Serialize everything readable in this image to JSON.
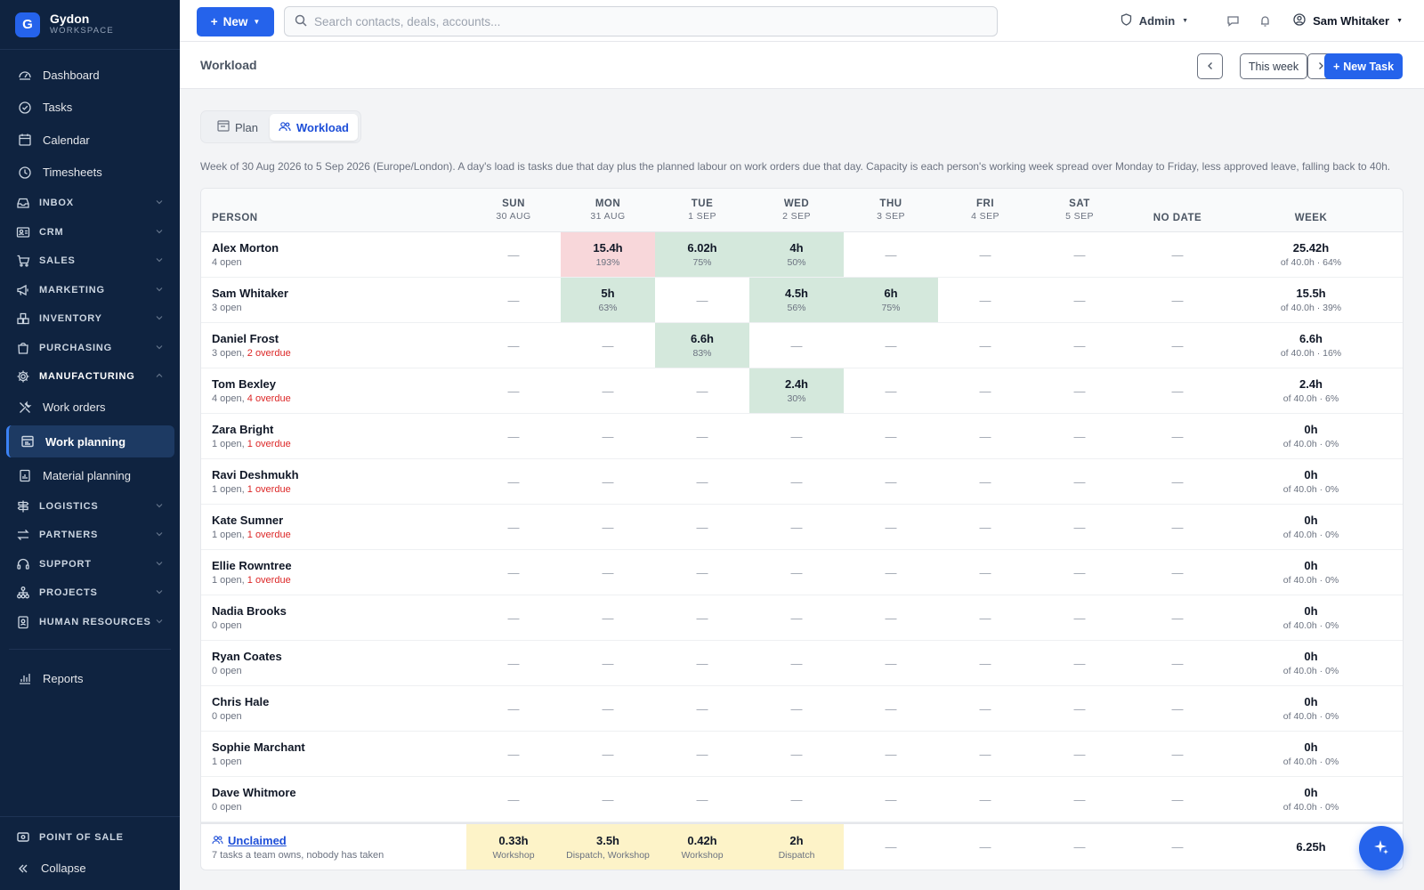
{
  "brand": {
    "name": "Gydon",
    "sub": "WORKSPACE",
    "logo": "G"
  },
  "sidebar": {
    "top_items": [
      {
        "label": "Dashboard",
        "icon": "dashboard-icon"
      },
      {
        "label": "Tasks",
        "icon": "check-circle-icon"
      },
      {
        "label": "Calendar",
        "icon": "calendar-icon"
      },
      {
        "label": "Timesheets",
        "icon": "clock-icon"
      }
    ],
    "sections": [
      {
        "label": "INBOX",
        "icon": "inbox-icon"
      },
      {
        "label": "CRM",
        "icon": "contact-card-icon"
      },
      {
        "label": "SALES",
        "icon": "cart-icon"
      },
      {
        "label": "MARKETING",
        "icon": "megaphone-icon"
      },
      {
        "label": "INVENTORY",
        "icon": "boxes-icon"
      },
      {
        "label": "PURCHASING",
        "icon": "bag-icon"
      },
      {
        "label": "MANUFACTURING",
        "icon": "gear-icon"
      }
    ],
    "manufacturing_items": [
      {
        "label": "Work orders",
        "icon": "tools-icon"
      },
      {
        "label": "Work planning",
        "icon": "planning-icon"
      },
      {
        "label": "Material planning",
        "icon": "clipboard-chart-icon"
      }
    ],
    "sections2": [
      {
        "label": "LOGISTICS",
        "icon": "signpost-icon"
      },
      {
        "label": "PARTNERS",
        "icon": "arrows-icon"
      },
      {
        "label": "SUPPORT",
        "icon": "headset-icon"
      },
      {
        "label": "PROJECTS",
        "icon": "hierarchy-icon"
      },
      {
        "label": "HUMAN RESOURCES",
        "icon": "id-badge-icon"
      }
    ],
    "reports": "Reports",
    "point_of_sale": "POINT OF SALE",
    "collapse": "Collapse"
  },
  "topbar": {
    "new_label": "New",
    "search_placeholder": "Search contacts, deals, accounts...",
    "admin_label": "Admin",
    "user_name": "Sam Whitaker"
  },
  "page": {
    "title": "Workload",
    "this_week": "This week",
    "new_task": "New Task",
    "tabs": {
      "plan": "Plan",
      "workload": "Workload"
    },
    "description": "Week of 30 Aug 2026 to 5 Sep 2026 (Europe/London). A day's load is tasks due that day plus the planned labour on work orders due that day. Capacity is each person's working week spread over Monday to Friday, less approved leave, falling back to 40h."
  },
  "table": {
    "person_header": "PERSON",
    "days": [
      {
        "day": "SUN",
        "date": "30 AUG"
      },
      {
        "day": "MON",
        "date": "31 AUG"
      },
      {
        "day": "TUE",
        "date": "1 SEP"
      },
      {
        "day": "WED",
        "date": "2 SEP"
      },
      {
        "day": "THU",
        "date": "3 SEP"
      },
      {
        "day": "FRI",
        "date": "4 SEP"
      },
      {
        "day": "SAT",
        "date": "5 SEP"
      }
    ],
    "nodate_header": "NO DATE",
    "week_header": "WEEK",
    "dash": "—",
    "rows": [
      {
        "name": "Alex Morton",
        "open": "4 open",
        "overdue": "",
        "cells": [
          null,
          {
            "h": "15.4h",
            "p": "193%",
            "s": "over"
          },
          {
            "h": "6.02h",
            "p": "75%",
            "s": "load"
          },
          {
            "h": "4h",
            "p": "50%",
            "s": "load"
          },
          null,
          null,
          null
        ],
        "week": "25.42h",
        "week_sub": "of 40.0h · 64%"
      },
      {
        "name": "Sam Whitaker",
        "open": "3 open",
        "overdue": "",
        "cells": [
          null,
          {
            "h": "5h",
            "p": "63%",
            "s": "load"
          },
          null,
          {
            "h": "4.5h",
            "p": "56%",
            "s": "load"
          },
          {
            "h": "6h",
            "p": "75%",
            "s": "load"
          },
          null,
          null
        ],
        "week": "15.5h",
        "week_sub": "of 40.0h · 39%"
      },
      {
        "name": "Daniel Frost",
        "open": "3 open, ",
        "overdue": "2 overdue",
        "cells": [
          null,
          null,
          {
            "h": "6.6h",
            "p": "83%",
            "s": "load"
          },
          null,
          null,
          null,
          null
        ],
        "week": "6.6h",
        "week_sub": "of 40.0h · 16%"
      },
      {
        "name": "Tom Bexley",
        "open": "4 open, ",
        "overdue": "4 overdue",
        "cells": [
          null,
          null,
          null,
          {
            "h": "2.4h",
            "p": "30%",
            "s": "load"
          },
          null,
          null,
          null
        ],
        "week": "2.4h",
        "week_sub": "of 40.0h · 6%"
      },
      {
        "name": "Zara Bright",
        "open": "1 open, ",
        "overdue": "1 overdue",
        "cells": [
          null,
          null,
          null,
          null,
          null,
          null,
          null
        ],
        "week": "0h",
        "week_sub": "of 40.0h · 0%"
      },
      {
        "name": "Ravi Deshmukh",
        "open": "1 open, ",
        "overdue": "1 overdue",
        "cells": [
          null,
          null,
          null,
          null,
          null,
          null,
          null
        ],
        "week": "0h",
        "week_sub": "of 40.0h · 0%"
      },
      {
        "name": "Kate Sumner",
        "open": "1 open, ",
        "overdue": "1 overdue",
        "cells": [
          null,
          null,
          null,
          null,
          null,
          null,
          null
        ],
        "week": "0h",
        "week_sub": "of 40.0h · 0%"
      },
      {
        "name": "Ellie Rowntree",
        "open": "1 open, ",
        "overdue": "1 overdue",
        "cells": [
          null,
          null,
          null,
          null,
          null,
          null,
          null
        ],
        "week": "0h",
        "week_sub": "of 40.0h · 0%"
      },
      {
        "name": "Nadia Brooks",
        "open": "0 open",
        "overdue": "",
        "cells": [
          null,
          null,
          null,
          null,
          null,
          null,
          null
        ],
        "week": "0h",
        "week_sub": "of 40.0h · 0%"
      },
      {
        "name": "Ryan Coates",
        "open": "0 open",
        "overdue": "",
        "cells": [
          null,
          null,
          null,
          null,
          null,
          null,
          null
        ],
        "week": "0h",
        "week_sub": "of 40.0h · 0%"
      },
      {
        "name": "Chris Hale",
        "open": "0 open",
        "overdue": "",
        "cells": [
          null,
          null,
          null,
          null,
          null,
          null,
          null
        ],
        "week": "0h",
        "week_sub": "of 40.0h · 0%"
      },
      {
        "name": "Sophie Marchant",
        "open": "1 open",
        "overdue": "",
        "cells": [
          null,
          null,
          null,
          null,
          null,
          null,
          null
        ],
        "week": "0h",
        "week_sub": "of 40.0h · 0%"
      },
      {
        "name": "Dave Whitmore",
        "open": "0 open",
        "overdue": "",
        "cells": [
          null,
          null,
          null,
          null,
          null,
          null,
          null
        ],
        "week": "0h",
        "week_sub": "of 40.0h · 0%"
      }
    ],
    "unclaimed": {
      "title": "Unclaimed",
      "sub": "7 tasks a team owns, nobody has taken",
      "cells": [
        {
          "h": "0.33h",
          "p": "Workshop"
        },
        {
          "h": "3.5h",
          "p": "Dispatch, Workshop"
        },
        {
          "h": "0.42h",
          "p": "Workshop"
        },
        {
          "h": "2h",
          "p": "Dispatch"
        },
        null,
        null,
        null
      ],
      "week": "6.25h"
    }
  },
  "colors": {
    "sidebar_bg": "#0f2340",
    "accent": "#2563eb",
    "load": "#d4e8dc",
    "over": "#f8d7da",
    "unclaimed": "#fdf3c8",
    "overdue": "#dc2626"
  }
}
